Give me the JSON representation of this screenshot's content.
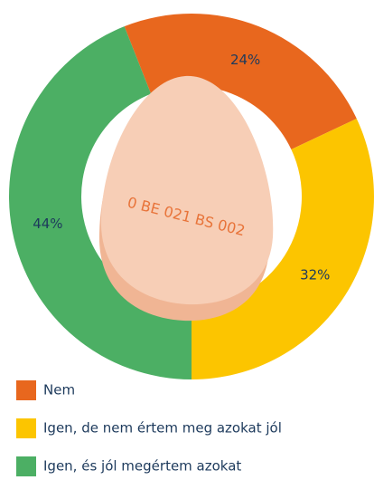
{
  "chart_data": {
    "type": "donut",
    "categories": [
      "Nem",
      "Igen, de nem értem meg azokat jól",
      "Igen, és jól megértem azokat"
    ],
    "values": [
      24,
      32,
      44
    ],
    "value_labels": [
      "24%",
      "32%",
      "44%"
    ],
    "colors": [
      "#e8671e",
      "#fcc500",
      "#4caf64"
    ],
    "egg_label": "0 BE 021 BS 002"
  }
}
